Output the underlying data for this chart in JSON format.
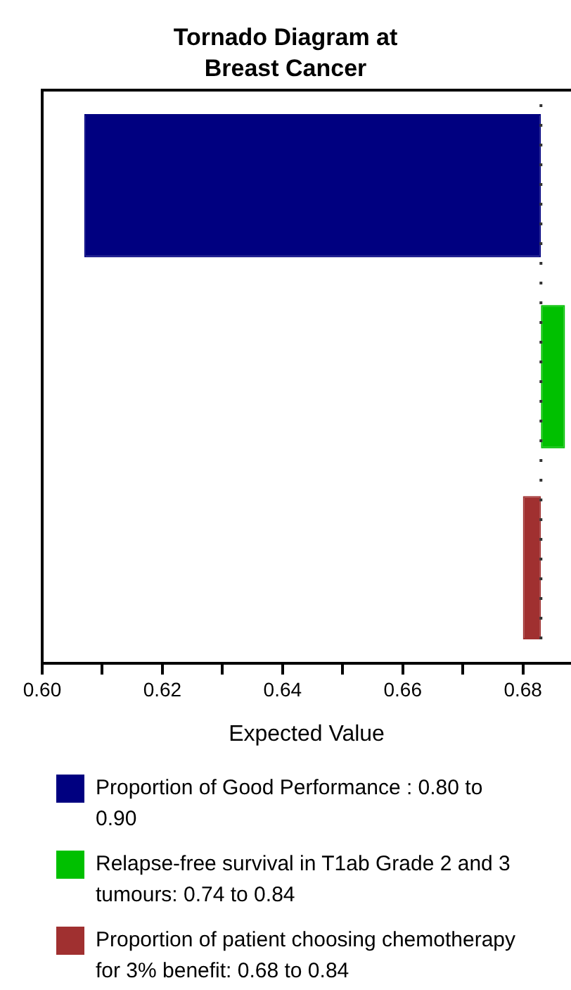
{
  "chart_data": {
    "type": "bar",
    "orientation": "horizontal",
    "title": "Tornado Diagram at Breast Cancer",
    "xlabel": "Expected Value",
    "categories": [
      null,
      null,
      null
    ],
    "series": [
      {
        "name": "Proportion of Good Performance : 0.80 to 0.90",
        "color": "#000080",
        "values": [
          0.076,
          null,
          null
        ],
        "base": [
          0.607,
          null,
          null
        ]
      },
      {
        "name": "Relapse-free survival in T1ab Grade 2 and 3 tumours: 0.74 to 0.84",
        "color": "#00c000",
        "values": [
          null,
          0.004,
          null
        ],
        "base": [
          null,
          0.683,
          null
        ]
      },
      {
        "name": "Proportion of patient choosing chemotherapy for 3% benefit: 0.68 to 0.84",
        "color": "#a03030",
        "values": [
          null,
          null,
          0.003
        ],
        "base": [
          null,
          null,
          0.68
        ]
      }
    ],
    "xlim": [
      0.6,
      0.688
    ],
    "xticks": [
      {
        "value": 0.6,
        "label": "0.60"
      },
      {
        "value": 0.61,
        "label": null
      },
      {
        "value": 0.62,
        "label": "0.62"
      },
      {
        "value": 0.63,
        "label": null
      },
      {
        "value": 0.64,
        "label": "0.64"
      },
      {
        "value": 0.65,
        "label": null
      },
      {
        "value": 0.66,
        "label": "0.66"
      },
      {
        "value": 0.67,
        "label": null
      },
      {
        "value": 0.68,
        "label": "0.68"
      }
    ],
    "ref_lines": [
      {
        "axis": "x",
        "value": 0.683,
        "line_style": "dotted"
      }
    ],
    "grid": false,
    "legend": "bottom"
  }
}
